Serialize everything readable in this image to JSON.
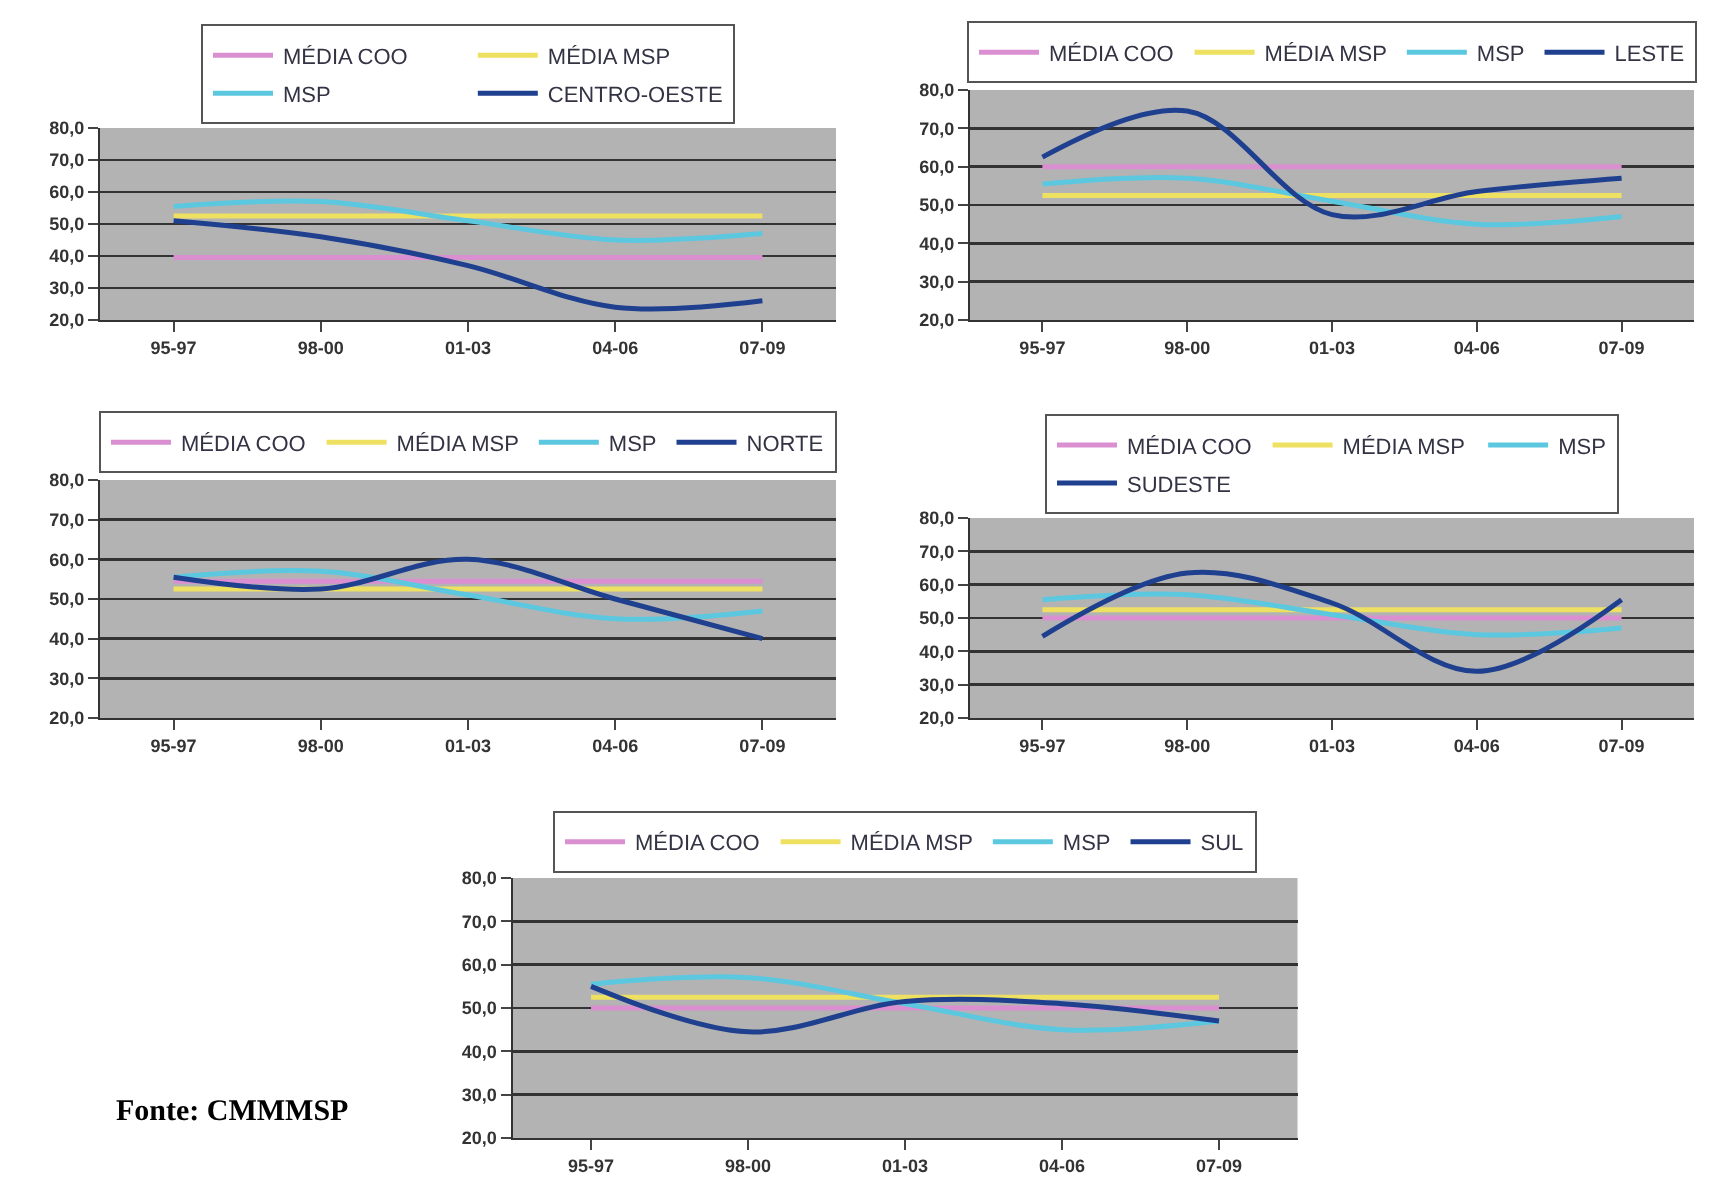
{
  "chart_data": [
    {
      "type": "line",
      "categories": [
        "95-97",
        "98-00",
        "01-03",
        "04-06",
        "07-09"
      ],
      "ylim": [
        20,
        80
      ],
      "yticks": [
        {
          "value": 20,
          "label": "20,0"
        },
        {
          "value": 30,
          "label": "30,0"
        },
        {
          "value": 40,
          "label": "40,0"
        },
        {
          "value": 50,
          "label": "50,0"
        },
        {
          "value": 60,
          "label": "60,0"
        },
        {
          "value": 70,
          "label": "70,0"
        },
        {
          "value": 80,
          "label": "80,0"
        }
      ],
      "grid": "y",
      "legend": "top",
      "line_style": "solid",
      "series": [
        {
          "name": "MÉDIA COO",
          "color": "#d98fd0",
          "values": [
            39.5,
            39.5,
            39.5,
            39.5,
            39.5
          ]
        },
        {
          "name": "MÉDIA MSP",
          "color": "#eee060",
          "values": [
            52.5,
            52.5,
            52.5,
            52.5,
            52.5
          ]
        },
        {
          "name": "MSP",
          "color": "#5bc8e0",
          "values": [
            55.5,
            57,
            51,
            45,
            47
          ]
        },
        {
          "name": "CENTRO-OESTE",
          "color": "#1f3f8f",
          "values": [
            51,
            46,
            37,
            24,
            26
          ]
        }
      ]
    },
    {
      "type": "line",
      "categories": [
        "95-97",
        "98-00",
        "01-03",
        "04-06",
        "07-09"
      ],
      "ylim": [
        20,
        80
      ],
      "yticks": [
        {
          "value": 20,
          "label": "20,0"
        },
        {
          "value": 30,
          "label": "30,0"
        },
        {
          "value": 40,
          "label": "40,0"
        },
        {
          "value": 50,
          "label": "50,0"
        },
        {
          "value": 60,
          "label": "60,0"
        },
        {
          "value": 70,
          "label": "70,0"
        },
        {
          "value": 80,
          "label": "80,0"
        }
      ],
      "grid": "y",
      "legend": "top",
      "line_style": "solid",
      "series": [
        {
          "name": "MÉDIA COO",
          "color": "#d98fd0",
          "values": [
            60,
            60,
            60,
            60,
            60
          ]
        },
        {
          "name": "MÉDIA MSP",
          "color": "#eee060",
          "values": [
            52.5,
            52.5,
            52.5,
            52.5,
            52.5
          ]
        },
        {
          "name": "MSP",
          "color": "#5bc8e0",
          "values": [
            55.5,
            57,
            51,
            45,
            47
          ]
        },
        {
          "name": "LESTE",
          "color": "#1f3f8f",
          "values": [
            62.5,
            74.5,
            47.5,
            53.5,
            57
          ]
        }
      ]
    },
    {
      "type": "line",
      "categories": [
        "95-97",
        "98-00",
        "01-03",
        "04-06",
        "07-09"
      ],
      "ylim": [
        20,
        80
      ],
      "yticks": [
        {
          "value": 20,
          "label": "20,0"
        },
        {
          "value": 30,
          "label": "30,0"
        },
        {
          "value": 40,
          "label": "40,0"
        },
        {
          "value": 50,
          "label": "50,0"
        },
        {
          "value": 60,
          "label": "60,0"
        },
        {
          "value": 70,
          "label": "70,0"
        },
        {
          "value": 80,
          "label": "80,0"
        }
      ],
      "grid": "y",
      "legend": "top",
      "line_style": "solid",
      "series": [
        {
          "name": "MÉDIA COO",
          "color": "#d98fd0",
          "values": [
            54.5,
            54.5,
            54.5,
            54.5,
            54.5
          ]
        },
        {
          "name": "MÉDIA MSP",
          "color": "#eee060",
          "values": [
            52.5,
            52.5,
            52.5,
            52.5,
            52.5
          ]
        },
        {
          "name": "MSP",
          "color": "#5bc8e0",
          "values": [
            55.5,
            57,
            51,
            45,
            47
          ]
        },
        {
          "name": "NORTE",
          "color": "#1f3f8f",
          "values": [
            55.5,
            52.5,
            60,
            50,
            40
          ]
        }
      ]
    },
    {
      "type": "line",
      "categories": [
        "95-97",
        "98-00",
        "01-03",
        "04-06",
        "07-09"
      ],
      "ylim": [
        20,
        80
      ],
      "yticks": [
        {
          "value": 20,
          "label": "20,0"
        },
        {
          "value": 30,
          "label": "30,0"
        },
        {
          "value": 40,
          "label": "40,0"
        },
        {
          "value": 50,
          "label": "50,0"
        },
        {
          "value": 60,
          "label": "60,0"
        },
        {
          "value": 70,
          "label": "70,0"
        },
        {
          "value": 80,
          "label": "80,0"
        }
      ],
      "grid": "y",
      "legend": "top",
      "line_style": "solid",
      "series": [
        {
          "name": "MÉDIA COO",
          "color": "#d98fd0",
          "values": [
            50,
            50,
            50,
            50,
            50
          ]
        },
        {
          "name": "MÉDIA MSP",
          "color": "#eee060",
          "values": [
            52.5,
            52.5,
            52.5,
            52.5,
            52.5
          ]
        },
        {
          "name": "MSP",
          "color": "#5bc8e0",
          "values": [
            55.5,
            57,
            51,
            45,
            47
          ]
        },
        {
          "name": "SUDESTE",
          "color": "#1f3f8f",
          "values": [
            44.5,
            63.5,
            54.5,
            34,
            55.5
          ]
        }
      ]
    },
    {
      "type": "line",
      "categories": [
        "95-97",
        "98-00",
        "01-03",
        "04-06",
        "07-09"
      ],
      "ylim": [
        20,
        80
      ],
      "yticks": [
        {
          "value": 20,
          "label": "20,0"
        },
        {
          "value": 30,
          "label": "30,0"
        },
        {
          "value": 40,
          "label": "40,0"
        },
        {
          "value": 50,
          "label": "50,0"
        },
        {
          "value": 60,
          "label": "60,0"
        },
        {
          "value": 70,
          "label": "70,0"
        },
        {
          "value": 80,
          "label": "80,0"
        }
      ],
      "grid": "y",
      "legend": "top",
      "line_style": "solid",
      "annotations": [
        "Fonte: CMMMSP"
      ],
      "series": [
        {
          "name": "MÉDIA COO",
          "color": "#d98fd0",
          "values": [
            50,
            50,
            50,
            50,
            50
          ]
        },
        {
          "name": "MÉDIA MSP",
          "color": "#eee060",
          "values": [
            52.5,
            52.5,
            52.5,
            52.5,
            52.5
          ]
        },
        {
          "name": "MSP",
          "color": "#5bc8e0",
          "values": [
            55.5,
            57,
            51,
            45,
            47
          ]
        },
        {
          "name": "SUL",
          "color": "#1f3f8f",
          "values": [
            55,
            44.5,
            51.5,
            51,
            47
          ]
        }
      ]
    }
  ]
}
